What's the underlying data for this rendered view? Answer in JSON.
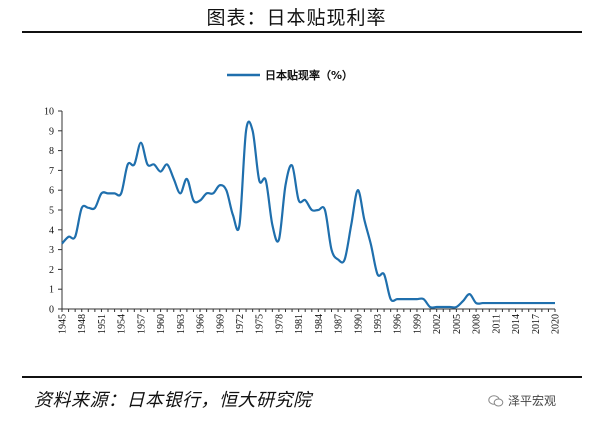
{
  "figure_title": "图表：日本贴现利率",
  "source_text": "资料来源：日本银行，恒大研究院",
  "watermark_text": "泽平宏观",
  "chart_data": {
    "type": "line",
    "title": "",
    "xlabel": "",
    "ylabel": "",
    "legend_position": "top-center",
    "grid": false,
    "line_color": "#1f6fad",
    "series": [
      {
        "name": "日本贴现率（%）",
        "x": [
          1945,
          1946,
          1947,
          1948,
          1949,
          1950,
          1951,
          1952,
          1953,
          1954,
          1955,
          1956,
          1957,
          1958,
          1959,
          1960,
          1961,
          1962,
          1963,
          1964,
          1965,
          1966,
          1967,
          1968,
          1969,
          1970,
          1971,
          1972,
          1973,
          1974,
          1975,
          1976,
          1977,
          1978,
          1979,
          1980,
          1981,
          1982,
          1983,
          1984,
          1985,
          1986,
          1987,
          1988,
          1989,
          1990,
          1991,
          1992,
          1993,
          1994,
          1995,
          1996,
          1997,
          1998,
          1999,
          2000,
          2001,
          2002,
          2003,
          2004,
          2005,
          2006,
          2007,
          2008,
          2009,
          2010,
          2011,
          2012,
          2013,
          2014,
          2015,
          2016,
          2017,
          2018,
          2019,
          2020
        ],
        "values": [
          3.3,
          3.65,
          3.65,
          5.1,
          5.11,
          5.1,
          5.84,
          5.84,
          5.84,
          5.84,
          7.3,
          7.3,
          8.4,
          7.3,
          7.3,
          6.94,
          7.3,
          6.57,
          5.84,
          6.57,
          5.48,
          5.48,
          5.84,
          5.84,
          6.25,
          6.0,
          4.75,
          4.25,
          9.0,
          9.0,
          6.5,
          6.5,
          4.25,
          3.5,
          6.25,
          7.25,
          5.5,
          5.5,
          5.0,
          5.0,
          5.0,
          3.0,
          2.5,
          2.5,
          4.25,
          6.0,
          4.5,
          3.25,
          1.75,
          1.75,
          0.5,
          0.5,
          0.5,
          0.5,
          0.5,
          0.5,
          0.1,
          0.1,
          0.1,
          0.1,
          0.1,
          0.4,
          0.75,
          0.3,
          0.3,
          0.3,
          0.3,
          0.3,
          0.3,
          0.3,
          0.3,
          0.3,
          0.3,
          0.3,
          0.3,
          0.3
        ]
      }
    ],
    "ylim": [
      0,
      10
    ],
    "yticks": [
      0,
      1,
      2,
      3,
      4,
      5,
      6,
      7,
      8,
      9,
      10
    ],
    "xticks": [
      1945,
      1948,
      1951,
      1954,
      1957,
      1960,
      1963,
      1966,
      1969,
      1972,
      1975,
      1978,
      1981,
      1984,
      1987,
      1990,
      1993,
      1996,
      1999,
      2002,
      2005,
      2008,
      2011,
      2014,
      2017,
      2020
    ],
    "xlim": [
      1945,
      2020
    ]
  }
}
